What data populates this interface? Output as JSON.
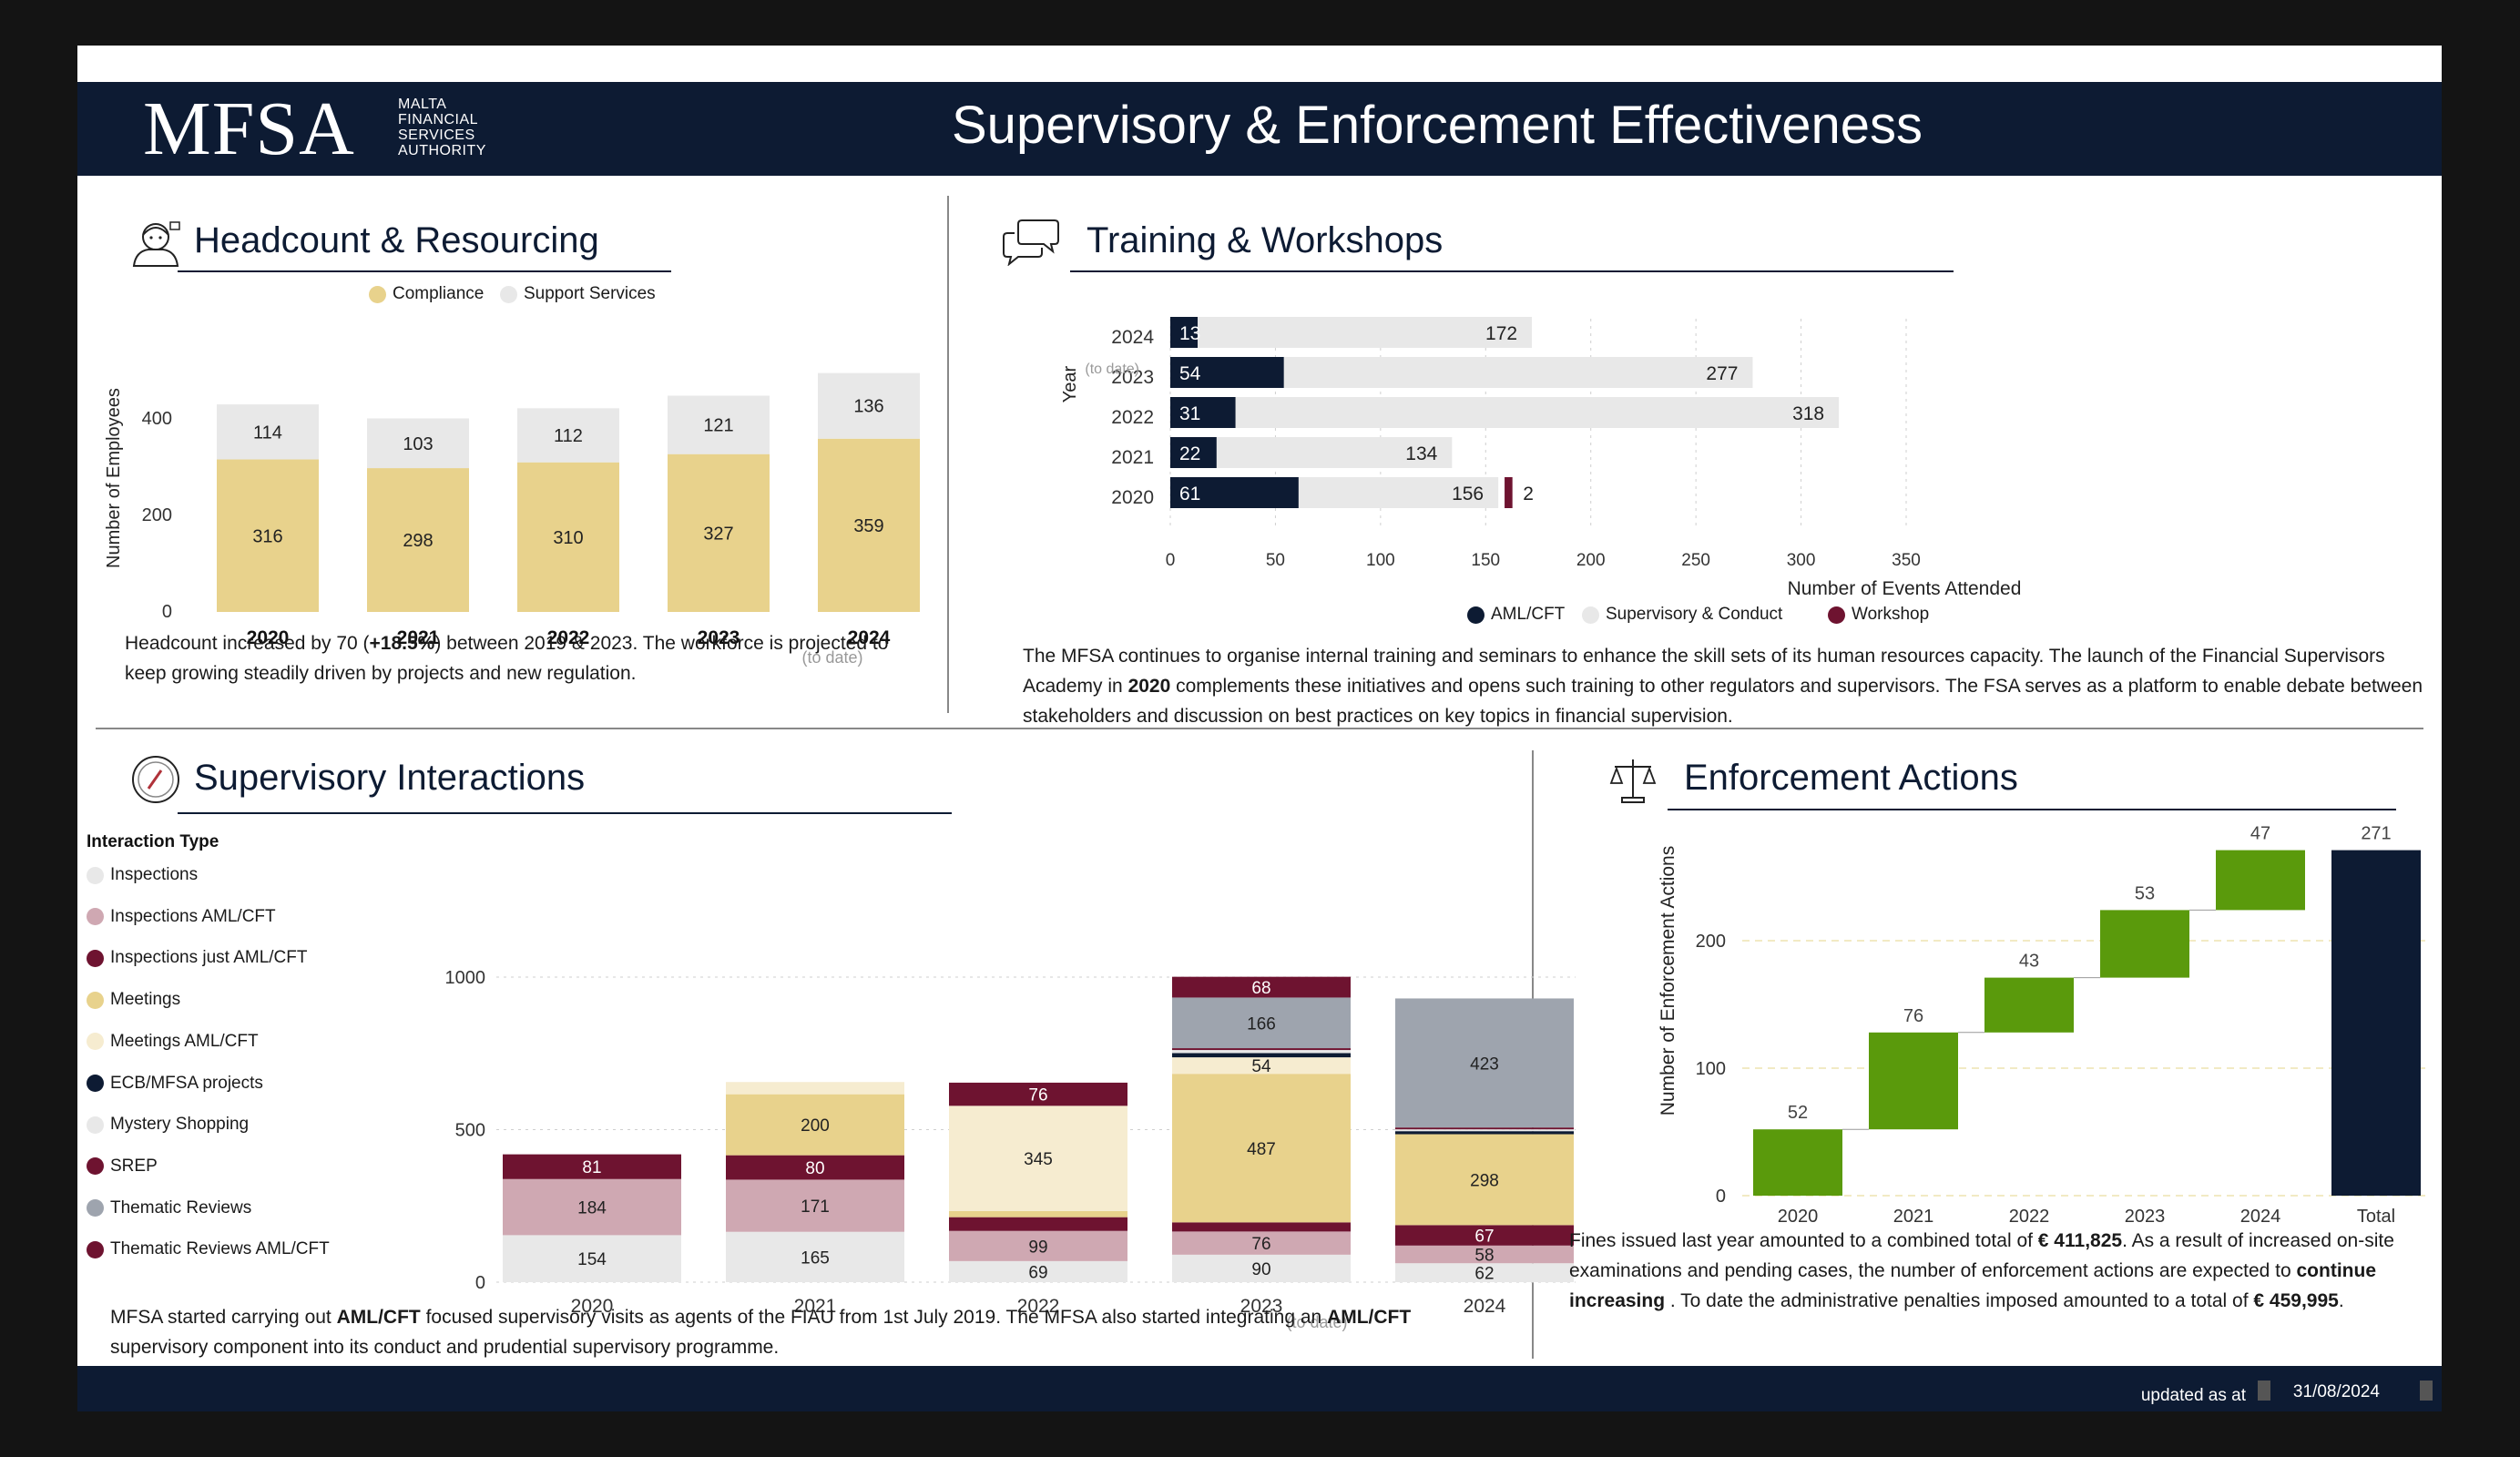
{
  "header": {
    "logo_main": "MFSA",
    "logo_sub": [
      "MALTA",
      "FINANCIAL",
      "SERVICES",
      "AUTHORITY"
    ],
    "title": "Supervisory & Enforcement Effectiveness"
  },
  "colors": {
    "navy": "#0d1b33",
    "compliance": "#e8d28c",
    "support": "#e8e8e8",
    "maroon": "#6e1330",
    "pink": "#cfa8b2",
    "cream": "#f6ecd0",
    "slate": "#9ea4ae",
    "green": "#5a9a0c"
  },
  "headcount": {
    "icon": "person-icon",
    "title": "Headcount & Resourcing",
    "legend": [
      "Compliance",
      "Support Services"
    ],
    "ylabel": "Number of Employees",
    "yticks": [
      "0",
      "200",
      "400"
    ],
    "note": "(to date)",
    "text_parts": [
      "Headcount increased by 70 (",
      "+18.5%",
      ") between 2019 & 2023. The workforce is projected to keep growing steadily driven by projects and new regulation."
    ]
  },
  "training": {
    "icon": "speech-bubble-icon",
    "title": "Training & Workshops",
    "ylabel": "Year",
    "xlabel": "Number of Events Attended",
    "note": "(to date)",
    "legend": [
      "AML/CFT",
      "Supervisory & Conduct",
      "Workshop"
    ],
    "text_parts": [
      "The MFSA continues to organise internal training and seminars to enhance the skill sets of its human resources capacity. The launch of the Financial Supervisors Academy in ",
      "2020",
      " complements these initiatives and opens such training to other regulators and supervisors. The FSA serves as a platform to enable debate between stakeholders and discussion on best practices on key topics in financial supervision."
    ]
  },
  "interactions": {
    "icon": "gauge-icon",
    "title": "Supervisory Interactions",
    "legend_title": "Interaction Type",
    "legend": [
      "Inspections",
      "Inspections  AML/CFT",
      "Inspections just AML/CFT",
      "Meetings",
      "Meetings  AML/CFT",
      "ECB/MFSA projects",
      "Mystery Shopping",
      "SREP",
      "Thematic Reviews",
      "Thematic Reviews   AML/CFT"
    ],
    "note": "(to date)",
    "text_parts": [
      "MFSA started carrying out ",
      "AML/CFT",
      " focused supervisory visits as agents of the FIAU from 1st July 2019. The MFSA also started integrating an ",
      "AML/CFT",
      " supervisory component into its conduct and prudential supervisory programme."
    ]
  },
  "enforcement": {
    "icon": "scales-icon",
    "title": "Enforcement Actions",
    "ylabel": "Number of Enforcement Actions",
    "text_parts": [
      "Fines issued last year amounted to a combined total of ",
      "€ 411,825",
      ". As a result of increased on-site examinations and pending cases, the number of enforcement actions are expected to ",
      "continue increasing",
      " . To date the administrative penalties imposed amounted to a total of  ",
      "€ 459,995",
      "."
    ]
  },
  "footer": {
    "label": "updated as at",
    "date": "31/08/2024"
  },
  "chart_data": [
    {
      "id": "headcount",
      "type": "bar",
      "stacked": true,
      "categories": [
        "2020",
        "2021",
        "2022",
        "2023",
        "2024"
      ],
      "series": [
        {
          "name": "Compliance",
          "values": [
            316,
            298,
            310,
            327,
            359
          ]
        },
        {
          "name": "Support Services",
          "values": [
            114,
            103,
            112,
            121,
            136
          ]
        }
      ],
      "ylabel": "Number of Employees",
      "ylim": [
        0,
        500
      ],
      "yticks": [
        0,
        200,
        400
      ]
    },
    {
      "id": "training",
      "type": "bar",
      "orientation": "horizontal",
      "categories": [
        "2024",
        "2023",
        "2022",
        "2021",
        "2020"
      ],
      "series": [
        {
          "name": "AML/CFT",
          "values": [
            13,
            54,
            31,
            22,
            61
          ]
        },
        {
          "name": "Supervisory & Conduct",
          "values": [
            172,
            277,
            318,
            134,
            156
          ]
        },
        {
          "name": "Workshop",
          "values": [
            null,
            null,
            null,
            null,
            2
          ]
        }
      ],
      "xlabel": "Number of Events Attended",
      "ylabel": "Year",
      "xlim": [
        0,
        350
      ],
      "xticks": [
        0,
        50,
        100,
        150,
        200,
        250,
        300,
        350
      ]
    },
    {
      "id": "interactions",
      "type": "bar",
      "stacked": true,
      "categories": [
        "2020",
        "2021",
        "2022",
        "2023",
        "2024"
      ],
      "series": [
        {
          "name": "Inspections",
          "values": [
            154,
            165,
            69,
            90,
            62
          ]
        },
        {
          "name": "Inspections  AML/CFT",
          "values": [
            184,
            171,
            99,
            76,
            58
          ]
        },
        {
          "name": "Inspections just AML/CFT",
          "values": [
            81,
            80,
            45,
            30,
            67
          ]
        },
        {
          "name": "Meetings",
          "values": [
            0,
            200,
            20,
            487,
            298
          ]
        },
        {
          "name": "Meetings  AML/CFT",
          "values": [
            0,
            40,
            345,
            54,
            0
          ]
        },
        {
          "name": "ECB/MFSA projects",
          "values": [
            0,
            0,
            0,
            14,
            10
          ]
        },
        {
          "name": "Mystery Shopping",
          "values": [
            0,
            0,
            0,
            10,
            6
          ]
        },
        {
          "name": "SREP",
          "values": [
            0,
            0,
            76,
            6,
            6
          ]
        },
        {
          "name": "Thematic Reviews",
          "values": [
            0,
            0,
            0,
            166,
            423
          ]
        },
        {
          "name": "Thematic Reviews   AML/CFT",
          "values": [
            0,
            0,
            0,
            68,
            0
          ]
        }
      ],
      "ylim": [
        0,
        1050
      ],
      "yticks": [
        0,
        500,
        1000
      ]
    },
    {
      "id": "enforcement",
      "type": "bar",
      "waterfall": true,
      "categories": [
        "2020",
        "2021",
        "2022",
        "2023",
        "2024",
        "Total"
      ],
      "values": [
        52,
        76,
        43,
        53,
        47,
        271
      ],
      "ylabel": "Number of Enforcement Actions",
      "ylim": [
        0,
        265
      ],
      "yticks": [
        0,
        100,
        200
      ]
    }
  ]
}
